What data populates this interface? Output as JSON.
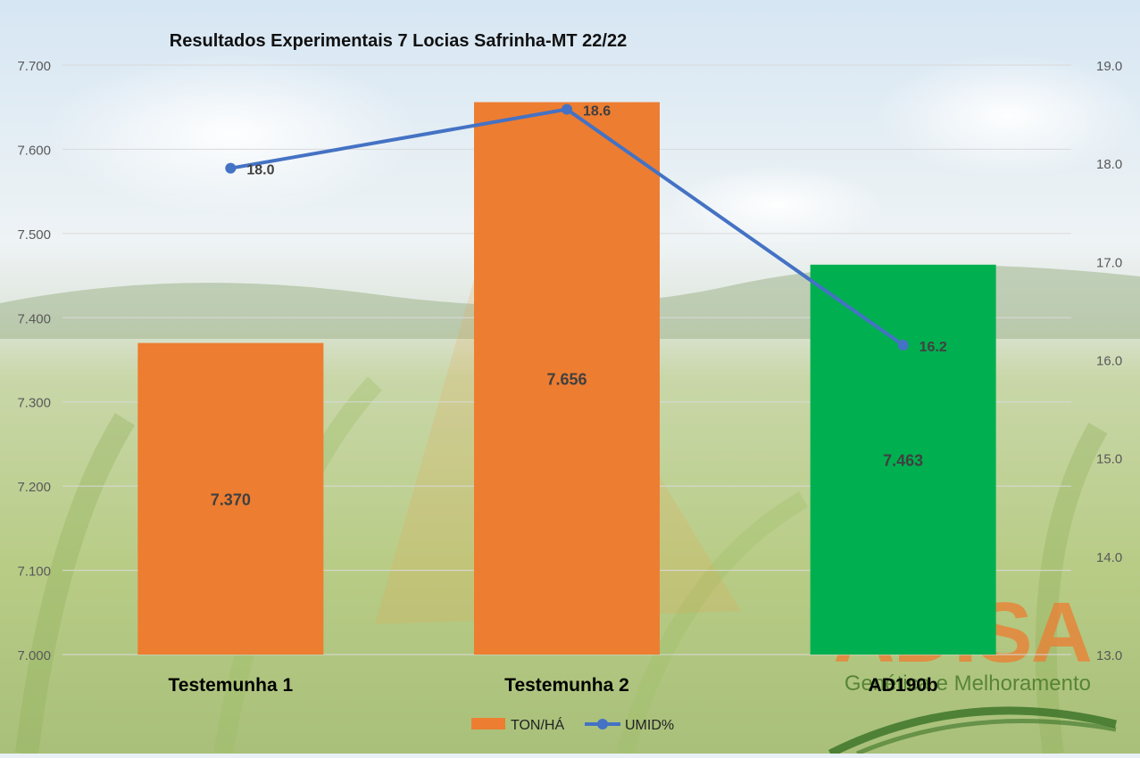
{
  "chart_data": {
    "type": "bar",
    "title": "Resultados Experimentais 7 Locias Safrinha-MT 22/22",
    "categories": [
      "Testemunha 1",
      "Testemunha 2",
      "AD190b"
    ],
    "series": [
      {
        "name": "TON/HÁ",
        "type": "bar",
        "axis": "left",
        "values": [
          7.37,
          7.656,
          7.463
        ],
        "value_labels": [
          "7.370",
          "7.656",
          "7.463"
        ],
        "colors": [
          "#ED7D31",
          "#ED7D31",
          "#00B050"
        ]
      },
      {
        "name": "UMID%",
        "type": "line",
        "axis": "right",
        "values": [
          17.95,
          18.55,
          16.15
        ],
        "value_labels": [
          "18.0",
          "18.6",
          "16.2"
        ],
        "color": "#4472C4"
      }
    ],
    "y_left": {
      "ylim": [
        7.0,
        7.7
      ],
      "ticks": [
        7.0,
        7.1,
        7.2,
        7.3,
        7.4,
        7.5,
        7.6,
        7.7
      ],
      "tick_labels": [
        "7.000",
        "7.100",
        "7.200",
        "7.300",
        "7.400",
        "7.500",
        "7.600",
        "7.700"
      ]
    },
    "y_right": {
      "ylim": [
        13.0,
        19.0
      ],
      "ticks": [
        13,
        14,
        15,
        16,
        17,
        18,
        19
      ],
      "tick_labels": [
        "13.0",
        "14.0",
        "15.0",
        "16.0",
        "17.0",
        "18.0",
        "19.0"
      ]
    },
    "grid": true,
    "legend_position": "bottom"
  },
  "watermark": {
    "logo_text": "ADISA",
    "tagline": "Genética e Melhoramento"
  },
  "colors": {
    "sky_top": "#dce9f3",
    "field_green": "#b9cf86",
    "gridline": "#d9d9d9",
    "tick_text": "#595959"
  }
}
